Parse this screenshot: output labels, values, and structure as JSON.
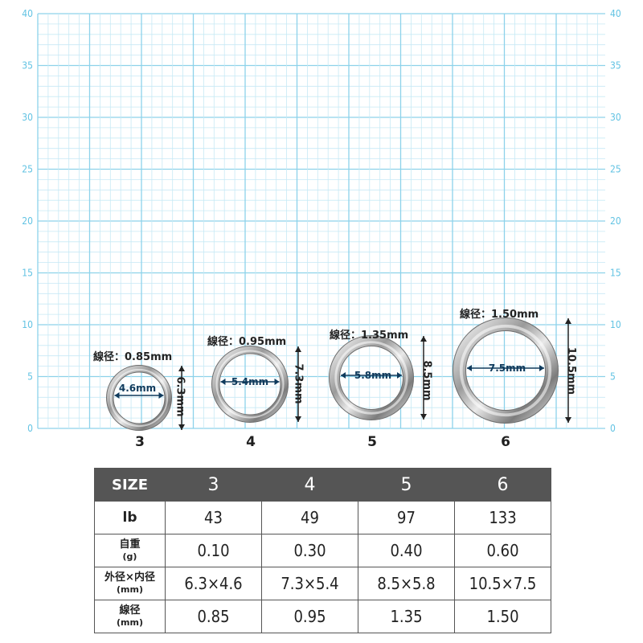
{
  "axis": {
    "ticks": [
      "0",
      "5",
      "10",
      "15",
      "20",
      "25",
      "30",
      "35",
      "40"
    ]
  },
  "rings": [
    {
      "size": "3",
      "wire": "線径：0.85mm",
      "inner": "4.6mm",
      "outer": "6.3mm"
    },
    {
      "size": "4",
      "wire": "線径：0.95mm",
      "inner": "5.4mm",
      "outer": "7.3mm"
    },
    {
      "size": "5",
      "wire": "線径：1.35mm",
      "inner": "5.8mm",
      "outer": "8.5mm"
    },
    {
      "size": "6",
      "wire": "線径：1.50mm",
      "inner": "7.5mm",
      "outer": "10.5mm"
    }
  ],
  "table": {
    "header": [
      "SIZE",
      "3",
      "4",
      "5",
      "6"
    ],
    "rows": [
      {
        "label": "lb",
        "sub": "",
        "values": [
          "43",
          "49",
          "97",
          "133"
        ]
      },
      {
        "label": "自重",
        "sub": "(g)",
        "values": [
          "0.10",
          "0.30",
          "0.40",
          "0.60"
        ]
      },
      {
        "label": "外径×内径",
        "sub": "(mm)",
        "values": [
          "6.3×4.6",
          "7.3×5.4",
          "8.5×5.8",
          "10.5×7.5"
        ]
      },
      {
        "label": "線径",
        "sub": "(mm)",
        "values": [
          "0.85",
          "0.95",
          "1.35",
          "1.50"
        ]
      }
    ]
  },
  "colors": {
    "grid_minor": "#c7e9f5",
    "grid_major": "#8dd2ea",
    "axis_text": "#63c3e3",
    "ring_metal": "#b8b8b8",
    "header_bg": "#555555"
  }
}
